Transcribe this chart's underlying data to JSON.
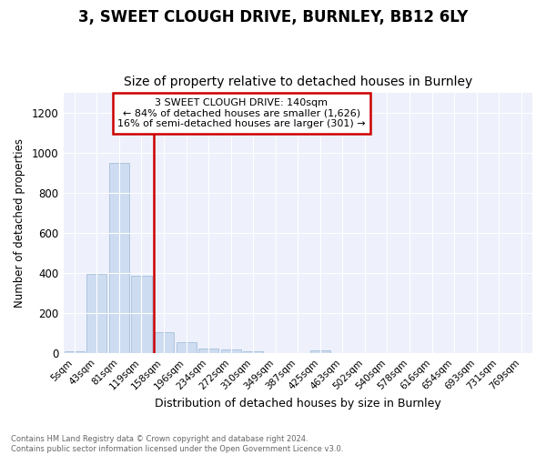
{
  "title1": "3, SWEET CLOUGH DRIVE, BURNLEY, BB12 6LY",
  "title2": "Size of property relative to detached houses in Burnley",
  "xlabel": "Distribution of detached houses by size in Burnley",
  "ylabel": "Number of detached properties",
  "bins": [
    "5sqm",
    "43sqm",
    "81sqm",
    "119sqm",
    "158sqm",
    "196sqm",
    "234sqm",
    "272sqm",
    "310sqm",
    "349sqm",
    "387sqm",
    "425sqm",
    "463sqm",
    "502sqm",
    "540sqm",
    "578sqm",
    "616sqm",
    "654sqm",
    "693sqm",
    "731sqm",
    "769sqm"
  ],
  "values": [
    10,
    395,
    950,
    390,
    105,
    55,
    25,
    18,
    10,
    0,
    0,
    15,
    0,
    0,
    0,
    0,
    0,
    0,
    0,
    0,
    0
  ],
  "bar_color": "#cddcf0",
  "bar_edge_color": "#9ab8d8",
  "vline_color": "#cc0000",
  "annotation_line1": "3 SWEET CLOUGH DRIVE: 140sqm",
  "annotation_line2": "← 84% of detached houses are smaller (1,626)",
  "annotation_line3": "16% of semi-detached houses are larger (301) →",
  "annotation_box_color": "#cc0000",
  "ylim": [
    0,
    1300
  ],
  "yticks": [
    0,
    200,
    400,
    600,
    800,
    1000,
    1200
  ],
  "footer": "Contains HM Land Registry data © Crown copyright and database right 2024.\nContains public sector information licensed under the Open Government Licence v3.0.",
  "bg_color": "#ffffff",
  "plot_bg_color": "#eef1fb",
  "grid_color": "#ffffff",
  "title1_fontsize": 12,
  "title2_fontsize": 10
}
